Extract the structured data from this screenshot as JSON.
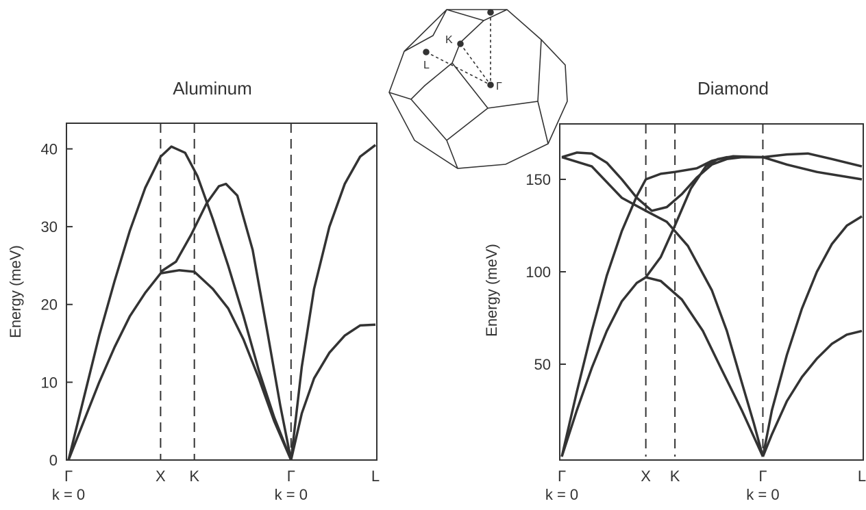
{
  "chart_data": [
    {
      "type": "line",
      "title": "Aluminum",
      "y_label": "Energy (meV)",
      "xlim": [
        0,
        1
      ],
      "ylim": [
        0,
        43.3
      ],
      "xticks": [
        {
          "value": 0,
          "label": "Γ"
        },
        {
          "value": 0.3,
          "label": "X"
        },
        {
          "value": 0.41,
          "label": "K"
        },
        {
          "value": 0.725,
          "label": "Γ"
        },
        {
          "value": 1,
          "label": "L"
        }
      ],
      "yticks": [
        0,
        10,
        20,
        30,
        40
      ],
      "annotations": [
        "k = 0",
        "k = 0"
      ],
      "color": "#333333",
      "series": [
        {
          "x": [
            0,
            0.05,
            0.1,
            0.15,
            0.2,
            0.25,
            0.3,
            0.335,
            0.38,
            0.42,
            0.47,
            0.52,
            0.57,
            0.62,
            0.67,
            0.725
          ],
          "values": [
            0,
            8,
            16,
            23,
            29.5,
            35,
            39,
            40.3,
            39.5,
            36.5,
            31,
            25,
            18.5,
            11.5,
            5.5,
            0
          ]
        },
        {
          "x": [
            0,
            0.05,
            0.1,
            0.15,
            0.2,
            0.25,
            0.3,
            0.33,
            0.36,
            0.41,
            0.47,
            0.52,
            0.57,
            0.62,
            0.67,
            0.725
          ],
          "values": [
            0,
            5,
            10,
            14.5,
            18.5,
            21.5,
            24,
            24.2,
            24.4,
            24.2,
            22,
            19.5,
            15.5,
            10.5,
            5,
            0
          ]
        },
        {
          "x": [
            0.3,
            0.35,
            0.4,
            0.45,
            0.49,
            0.513,
            0.55,
            0.6,
            0.65,
            0.69,
            0.725
          ],
          "values": [
            24.2,
            25.5,
            29,
            33,
            35.2,
            35.5,
            34,
            27,
            16,
            7,
            0
          ]
        },
        {
          "x": [
            0.725,
            0.76,
            0.8,
            0.85,
            0.9,
            0.95,
            1
          ],
          "values": [
            0,
            12,
            22,
            30,
            35.5,
            39,
            40.5
          ]
        },
        {
          "x": [
            0.725,
            0.76,
            0.8,
            0.85,
            0.9,
            0.95,
            1
          ],
          "values": [
            0,
            6,
            10.5,
            13.8,
            16,
            17.3,
            17.4
          ]
        }
      ]
    },
    {
      "type": "line",
      "title": "Diamond",
      "y_label": "Energy (meV)",
      "xlim": [
        0,
        1
      ],
      "ylim": [
        0,
        180
      ],
      "xticks": [
        {
          "value": 0,
          "label": "Γ"
        },
        {
          "value": 0.28,
          "label": "X"
        },
        {
          "value": 0.377,
          "label": "K"
        },
        {
          "value": 0.67,
          "label": "Γ"
        },
        {
          "value": 1,
          "label": "L"
        }
      ],
      "yticks": [
        50,
        100,
        150
      ],
      "annotations": [
        "k = 0",
        "k = 0"
      ],
      "color": "#333333",
      "series": [
        {
          "x": [
            0,
            0.05,
            0.1,
            0.15,
            0.2,
            0.25,
            0.3,
            0.35,
            0.4,
            0.45,
            0.5,
            0.55,
            0.6,
            0.67,
            0.75,
            0.82,
            0.9,
            1
          ],
          "values": [
            162,
            164.5,
            164,
            159,
            150,
            140,
            133,
            135,
            142,
            151,
            158,
            161,
            162,
            162,
            163.5,
            164,
            161,
            157
          ]
        },
        {
          "x": [
            0,
            0.1,
            0.2,
            0.28,
            0.35,
            0.42,
            0.5,
            0.55,
            0.6,
            0.64,
            0.67
          ],
          "values": [
            162,
            157,
            140,
            133,
            127,
            114,
            90,
            68,
            40,
            18,
            0
          ]
        },
        {
          "x": [
            0,
            0.05,
            0.1,
            0.15,
            0.2,
            0.25,
            0.28,
            0.33,
            0.377,
            0.45,
            0.5,
            0.55,
            0.67,
            0.75,
            0.85,
            1
          ],
          "values": [
            0,
            35,
            68,
            98,
            122,
            141,
            150,
            153,
            154,
            156,
            160,
            162,
            162,
            158,
            154,
            150
          ]
        },
        {
          "x": [
            0,
            0.05,
            0.1,
            0.15,
            0.2,
            0.25,
            0.28,
            0.33,
            0.4,
            0.47,
            0.53,
            0.6,
            0.67
          ],
          "values": [
            0,
            25,
            48,
            68,
            84,
            94,
            97,
            95,
            85,
            68,
            48,
            25,
            0
          ]
        },
        {
          "x": [
            0.28,
            0.33,
            0.377,
            0.43,
            0.48,
            0.52,
            0.57,
            0.67
          ],
          "values": [
            97,
            108,
            125,
            145,
            157,
            161,
            162.5,
            162
          ]
        },
        {
          "x": [
            0.67,
            0.7,
            0.75,
            0.8,
            0.85,
            0.9,
            0.95,
            1
          ],
          "values": [
            0,
            25,
            55,
            80,
            100,
            115,
            125,
            130
          ]
        },
        {
          "x": [
            0.67,
            0.7,
            0.75,
            0.8,
            0.85,
            0.9,
            0.95,
            1
          ],
          "values": [
            0,
            12,
            30,
            43,
            53,
            61,
            66,
            68
          ]
        }
      ]
    }
  ],
  "brillouin_zone": {
    "labels": [
      "K",
      "L",
      "Γ"
    ]
  }
}
